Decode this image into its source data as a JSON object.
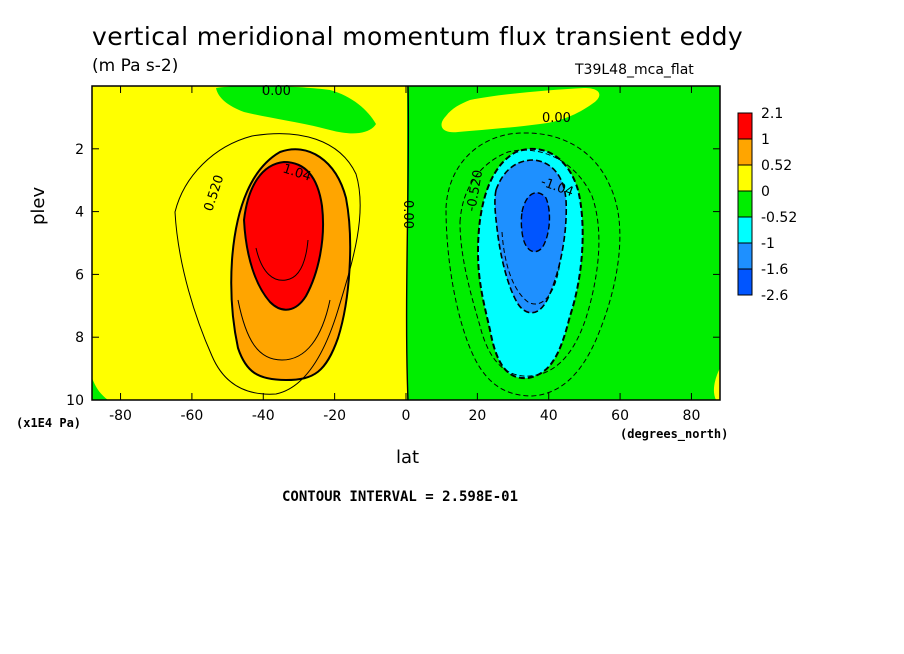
{
  "header": {
    "title": "vertical meridional momentum flux transient eddy",
    "units": "(m Pa s-2)",
    "run_name": "T39L48_mca_flat"
  },
  "footer": {
    "contour_interval": "CONTOUR INTERVAL = 2.598E-01"
  },
  "chart_data": {
    "type": "heatmap",
    "title": "vertical meridional momentum flux transient eddy",
    "subtitle": "(m Pa s-2)",
    "xlabel": "lat",
    "ylabel": "plev",
    "x_units": "(degrees_north)",
    "y_units": "(x1E4 Pa)",
    "xlim": [
      -88,
      88
    ],
    "ylim": [
      10,
      0
    ],
    "y_inverted": true,
    "x_ticks": [
      -80,
      -60,
      -40,
      -20,
      0,
      20,
      40,
      60,
      80
    ],
    "y_ticks": [
      2,
      4,
      6,
      8,
      10
    ],
    "contour_interval": 0.2598,
    "colorbar": {
      "labels": [
        "2.1",
        "1",
        "0.52",
        "0",
        "-0.52",
        "-1",
        "-1.6",
        "-2.6"
      ],
      "colors": [
        "#ff0000",
        "#ffa500",
        "#ffff00",
        "#00ee00",
        "#00ffff",
        "#1e90ff",
        "#0055ff"
      ]
    },
    "contour_labels": [
      "0.00",
      "0.00",
      "0.00",
      "0.520",
      "1.04",
      "-0.520",
      "-1.04"
    ],
    "extrema": [
      {
        "name": "max",
        "lat": -37,
        "plev": 4.0,
        "value": 2.1
      },
      {
        "name": "min",
        "lat": 37,
        "plev": 3.9,
        "value": -2.6
      }
    ]
  }
}
